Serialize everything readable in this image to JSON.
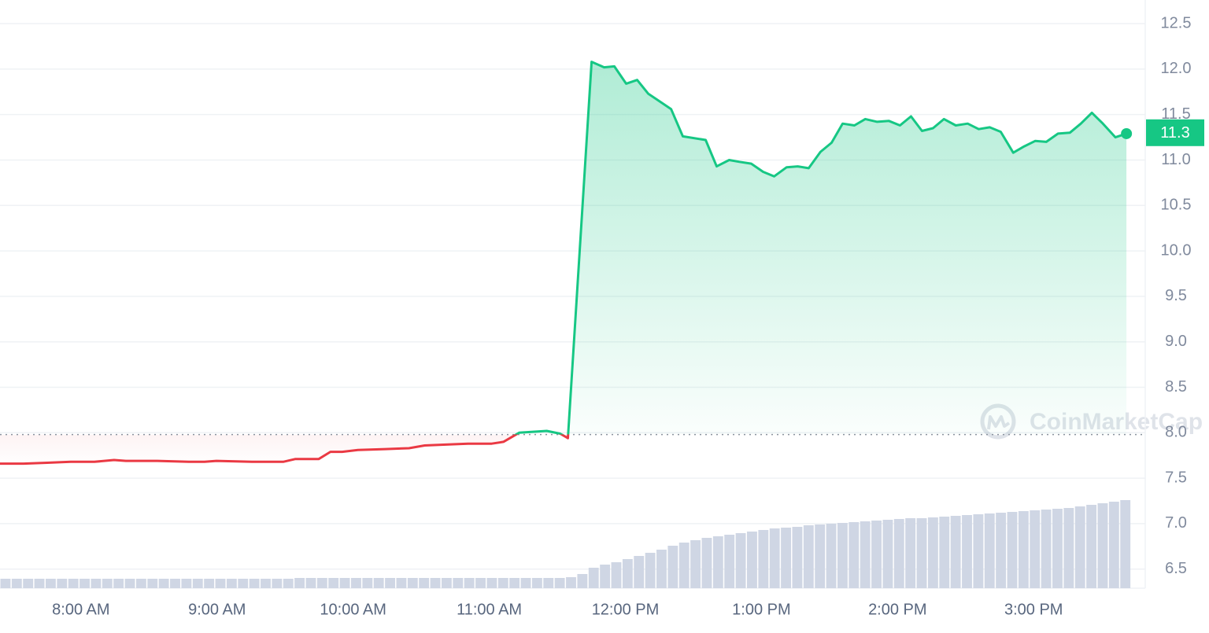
{
  "chart_data": {
    "type": "line",
    "watermark": "CoinMarketCap",
    "x": [
      7.405,
      7.578,
      7.752,
      7.925,
      8.099,
      8.243,
      8.33,
      8.561,
      8.792,
      8.908,
      8.995,
      9.255,
      9.486,
      9.573,
      9.746,
      9.833,
      9.919,
      10.035,
      10.237,
      10.41,
      10.526,
      10.7,
      10.844,
      11.018,
      11.104,
      11.22,
      11.422,
      11.521,
      11.578,
      11.752,
      11.844,
      11.919,
      12.006,
      12.087,
      12.168,
      12.336,
      12.422,
      12.59,
      12.671,
      12.763,
      12.838,
      12.925,
      13.012,
      13.093,
      13.185,
      13.266,
      13.347,
      13.434,
      13.515,
      13.596,
      13.683,
      13.763,
      13.85,
      13.937,
      14.018,
      14.099,
      14.18,
      14.261,
      14.341,
      14.428,
      14.515,
      14.596,
      14.677,
      14.758,
      14.85,
      14.931,
      15.012,
      15.093,
      15.179,
      15.266,
      15.347,
      15.428,
      15.509,
      15.601,
      15.682
    ],
    "series": [
      {
        "values": [
          7.66,
          7.66,
          7.67,
          7.68,
          7.68,
          7.7,
          7.69,
          7.69,
          7.68,
          7.68,
          7.69,
          7.68,
          7.68,
          7.71,
          7.71,
          7.79,
          7.79,
          7.81,
          7.82,
          7.83,
          7.86,
          7.87,
          7.88,
          7.88,
          7.9,
          8.0,
          8.02,
          7.99,
          7.94,
          12.08,
          12.02,
          12.03,
          11.84,
          11.88,
          11.73,
          11.56,
          11.26,
          11.22,
          10.93,
          11.0,
          10.98,
          10.96,
          10.87,
          10.82,
          10.92,
          10.93,
          10.91,
          11.09,
          11.19,
          11.4,
          11.38,
          11.45,
          11.42,
          11.43,
          11.38,
          11.48,
          11.32,
          11.35,
          11.45,
          11.38,
          11.4,
          11.34,
          11.36,
          11.31,
          11.08,
          11.15,
          11.21,
          11.2,
          11.29,
          11.3,
          11.4,
          11.52,
          11.4,
          11.25,
          11.29
        ]
      }
    ],
    "up_color": "#16c784",
    "down_color": "#ea3943",
    "reference_value": 7.98,
    "current_price": 11.3,
    "volume": {
      "color": "#cfd6e4",
      "values": [
        12,
        12,
        12,
        12,
        12,
        12,
        12,
        12,
        12,
        12,
        12,
        12,
        12,
        12,
        12,
        12,
        12,
        12,
        12,
        12,
        12,
        12,
        12,
        12,
        12,
        12,
        13,
        13,
        13,
        13,
        13,
        13,
        13,
        13,
        13,
        13,
        13,
        13,
        13,
        13,
        13,
        13,
        13,
        13,
        13,
        13,
        13,
        13,
        13,
        13,
        14,
        18,
        26,
        30,
        33,
        37,
        41,
        45,
        49,
        54,
        58,
        61,
        64,
        66,
        68,
        70,
        72,
        74,
        76,
        77,
        78,
        80,
        81,
        82,
        83,
        84,
        85,
        86,
        87,
        88,
        89,
        89,
        90,
        91,
        92,
        93,
        94,
        95,
        96,
        97,
        98,
        99,
        100,
        101,
        102,
        104,
        106,
        108,
        110,
        112
      ]
    },
    "xlim": [
      7.405,
      15.82
    ],
    "xticks": [
      {
        "value": 8,
        "label": "8:00 AM"
      },
      {
        "value": 9,
        "label": "9:00 AM"
      },
      {
        "value": 10,
        "label": "10:00 AM"
      },
      {
        "value": 11,
        "label": "11:00 AM"
      },
      {
        "value": 12,
        "label": "12:00 PM"
      },
      {
        "value": 13,
        "label": "1:00 PM"
      },
      {
        "value": 14,
        "label": "2:00 PM"
      },
      {
        "value": 15,
        "label": "3:00 PM"
      }
    ],
    "ylim": [
      6.29,
      12.76
    ],
    "yticks": [
      6.5,
      {
        "value": 7,
        "label": "7.0"
      },
      7.5,
      {
        "value": 8,
        "label": "8.0"
      },
      8.5,
      {
        "value": 9,
        "label": "9.0"
      },
      9.5,
      {
        "value": 10,
        "label": "10.0"
      },
      10.5,
      {
        "value": 11,
        "label": "11.0"
      },
      11.5,
      {
        "value": 12,
        "label": "12.0"
      },
      12.5
    ],
    "grid": true
  }
}
